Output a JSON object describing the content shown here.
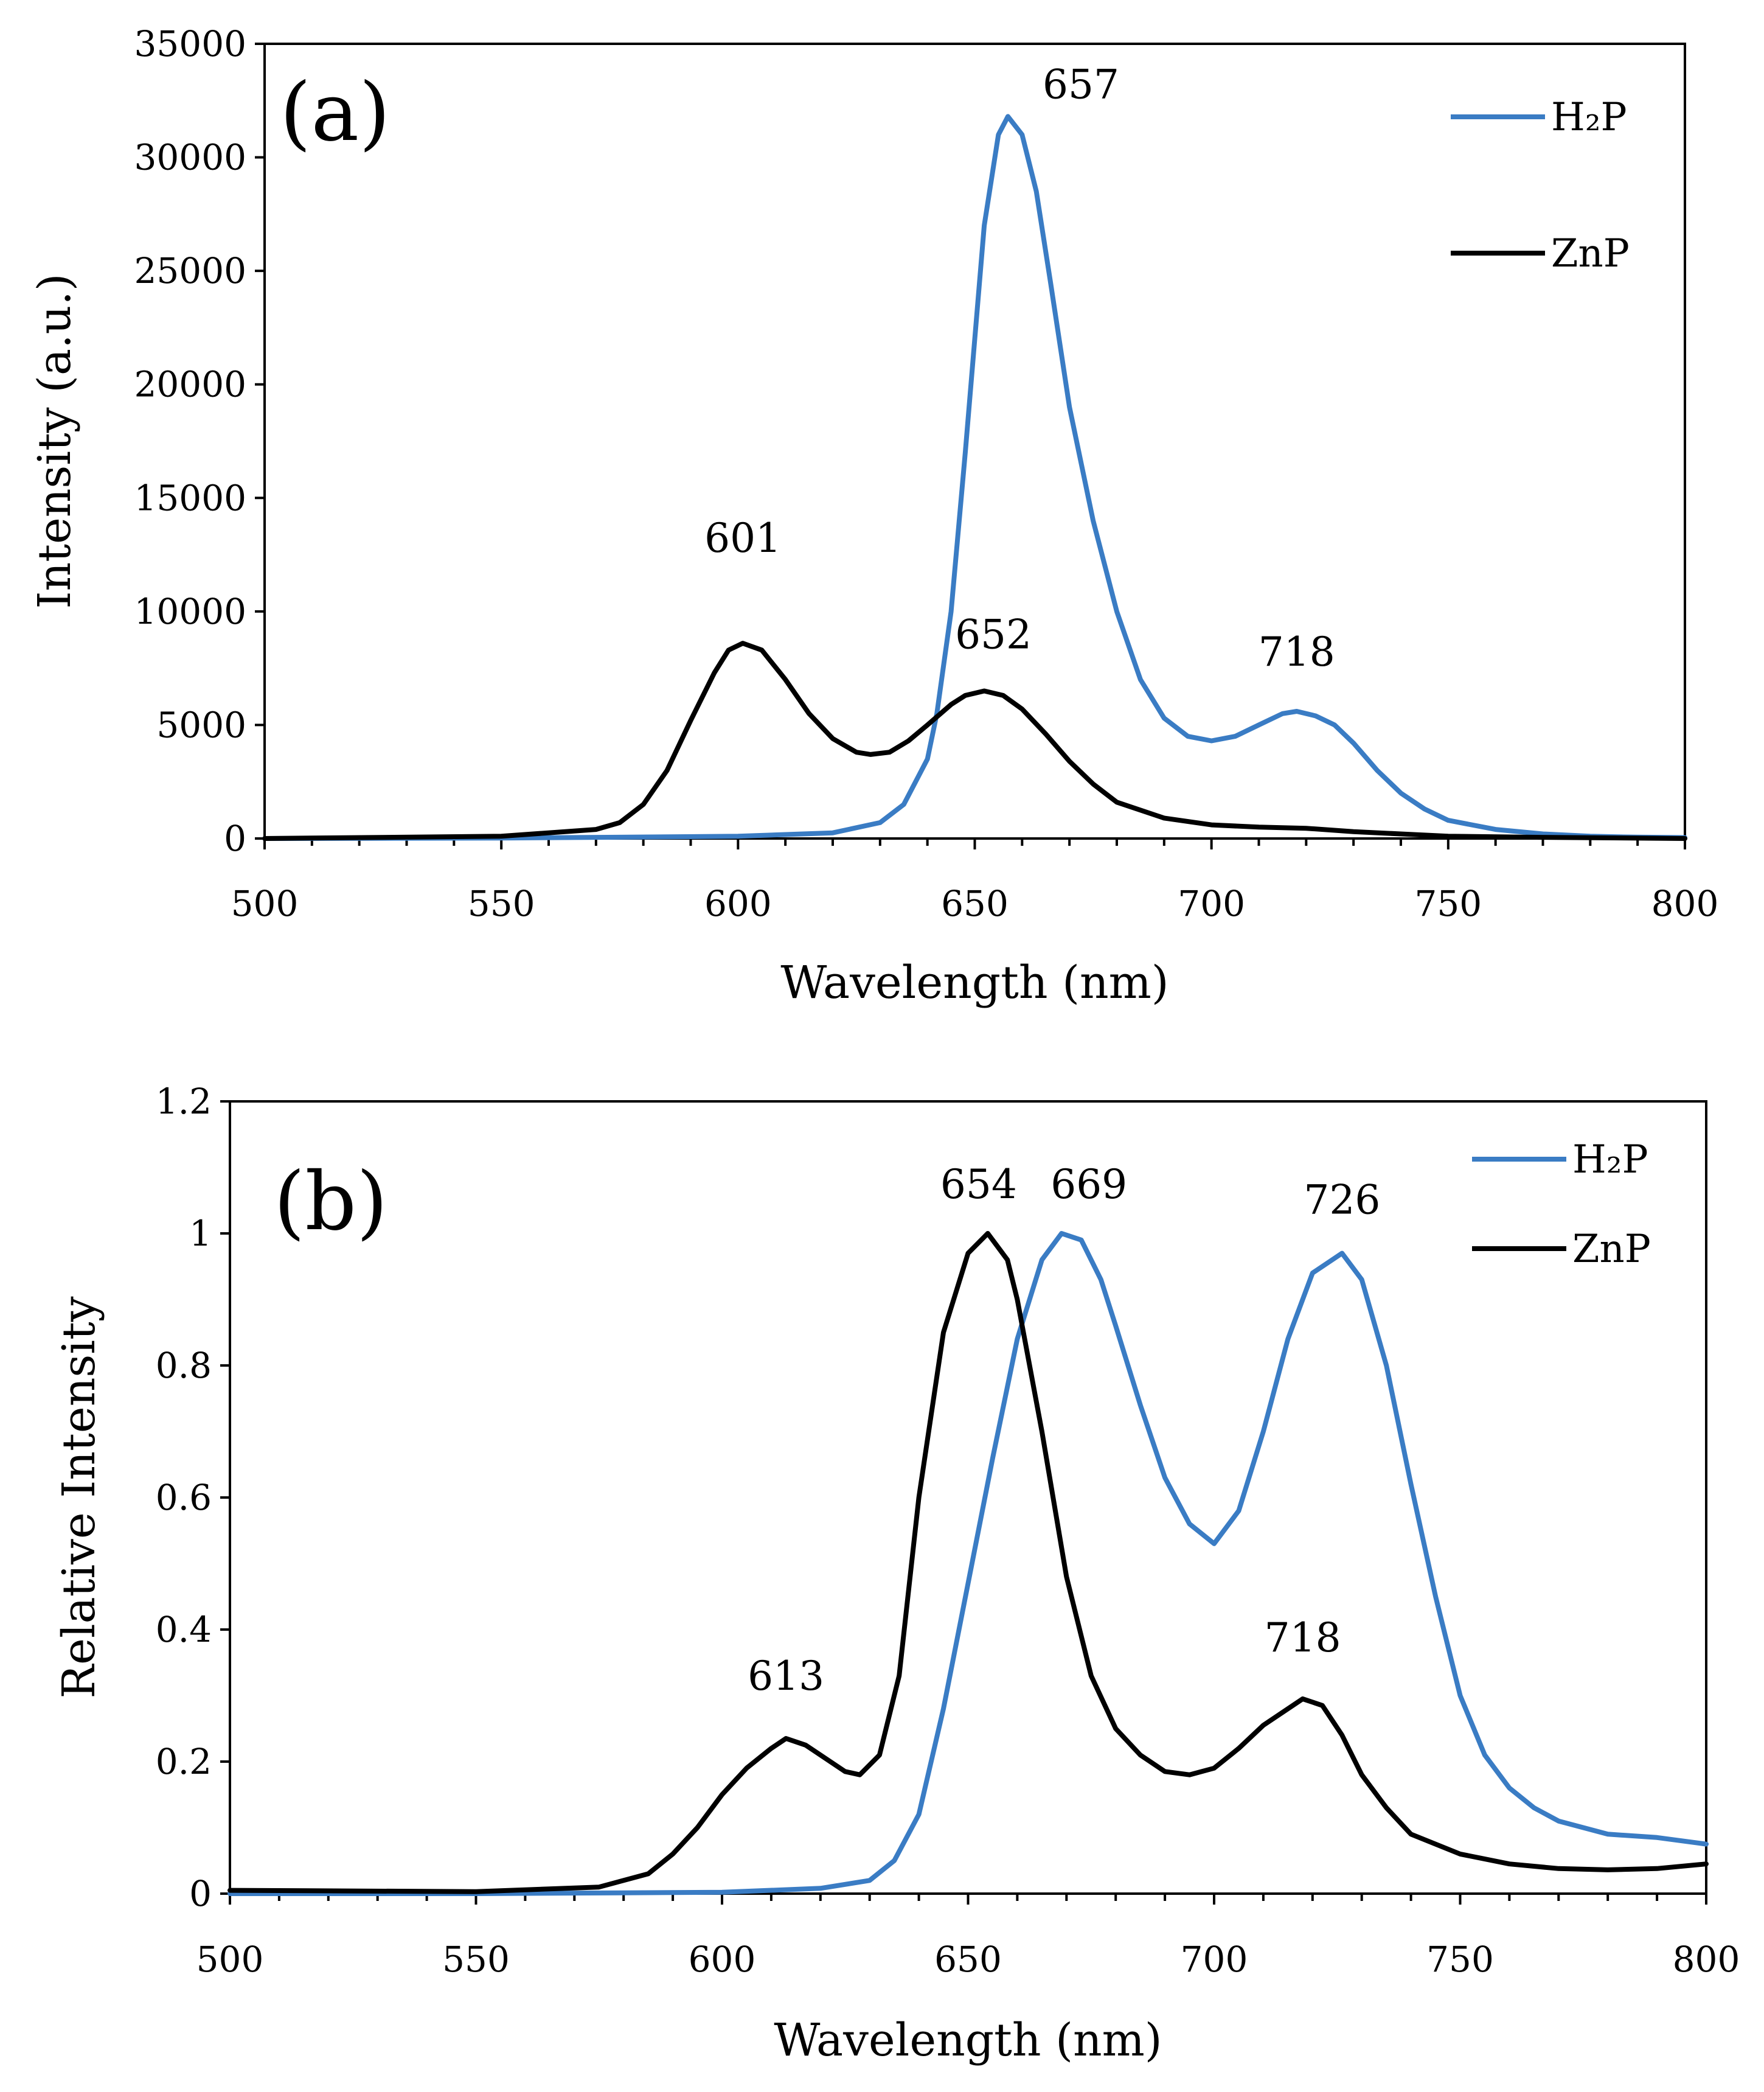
{
  "chart_data": [
    {
      "id": "a",
      "type": "line",
      "panel_label": "(a)",
      "xlabel": "Wavelength (nm)",
      "ylabel": "Intensity (a.u.)",
      "xlim": [
        500,
        800
      ],
      "ylim": [
        0,
        35000
      ],
      "x_ticks": [
        "500",
        "550",
        "600",
        "650",
        "700",
        "750",
        "800"
      ],
      "y_ticks": [
        "0",
        "5000",
        "10000",
        "15000",
        "20000",
        "25000",
        "30000",
        "35000"
      ],
      "legend_position": "top-right",
      "series": [
        {
          "name": "H₂P",
          "color": "#3a7cc4",
          "x": [
            500,
            550,
            600,
            620,
            630,
            635,
            640,
            642,
            645,
            648,
            650,
            652,
            655,
            657,
            660,
            663,
            666,
            670,
            675,
            680,
            685,
            690,
            695,
            700,
            705,
            710,
            715,
            718,
            722,
            726,
            730,
            735,
            740,
            745,
            750,
            760,
            770,
            780,
            790,
            800
          ],
          "y": [
            0,
            20,
            100,
            250,
            700,
            1500,
            3500,
            5500,
            10000,
            17000,
            22000,
            27000,
            31000,
            31800,
            31000,
            28500,
            24500,
            19000,
            14000,
            10000,
            7000,
            5300,
            4500,
            4300,
            4500,
            5000,
            5500,
            5600,
            5400,
            5000,
            4200,
            3000,
            2000,
            1300,
            800,
            400,
            200,
            100,
            60,
            40
          ]
        },
        {
          "name": "ZnP",
          "color": "#000000",
          "x": [
            500,
            550,
            570,
            575,
            580,
            585,
            590,
            595,
            598,
            601,
            605,
            610,
            615,
            620,
            625,
            628,
            632,
            636,
            640,
            645,
            648,
            652,
            656,
            660,
            665,
            670,
            675,
            680,
            690,
            700,
            710,
            720,
            730,
            740,
            750,
            770,
            800
          ],
          "y": [
            0,
            100,
            400,
            700,
            1500,
            3000,
            5200,
            7300,
            8300,
            8600,
            8300,
            7000,
            5500,
            4400,
            3800,
            3700,
            3800,
            4300,
            5000,
            5900,
            6300,
            6500,
            6300,
            5700,
            4600,
            3400,
            2400,
            1600,
            900,
            600,
            500,
            450,
            300,
            200,
            100,
            50,
            0
          ]
        }
      ],
      "annotations": [
        {
          "text": "657",
          "x": 657,
          "y": 31800
        },
        {
          "text": "601",
          "x": 601,
          "y": 8600
        },
        {
          "text": "652",
          "x": 652,
          "y": 6500
        },
        {
          "text": "718",
          "x": 718,
          "y": 5600
        }
      ]
    },
    {
      "id": "b",
      "type": "line",
      "panel_label": "(b)",
      "xlabel": "Wavelength (nm)",
      "ylabel": "Relative Intensity",
      "xlim": [
        500,
        800
      ],
      "ylim": [
        0,
        1.2
      ],
      "x_ticks": [
        "500",
        "550",
        "600",
        "650",
        "700",
        "750",
        "800"
      ],
      "y_ticks": [
        "0",
        "0.2",
        "0.4",
        "0.6",
        "0.8",
        "1",
        "1.2"
      ],
      "legend_position": "top-right",
      "series": [
        {
          "name": "H₂P",
          "color": "#3a7cc4",
          "x": [
            500,
            550,
            600,
            620,
            630,
            635,
            640,
            645,
            650,
            655,
            660,
            665,
            669,
            673,
            677,
            680,
            685,
            690,
            695,
            700,
            705,
            710,
            715,
            720,
            726,
            730,
            735,
            740,
            745,
            750,
            755,
            760,
            765,
            770,
            780,
            790,
            800
          ],
          "y": [
            0,
            0,
            0.002,
            0.008,
            0.02,
            0.05,
            0.12,
            0.28,
            0.47,
            0.66,
            0.84,
            0.96,
            1.0,
            0.99,
            0.93,
            0.86,
            0.74,
            0.63,
            0.56,
            0.53,
            0.58,
            0.7,
            0.84,
            0.94,
            0.97,
            0.93,
            0.8,
            0.62,
            0.45,
            0.3,
            0.21,
            0.16,
            0.13,
            0.11,
            0.09,
            0.085,
            0.075
          ]
        },
        {
          "name": "ZnP",
          "color": "#000000",
          "x": [
            500,
            550,
            575,
            585,
            590,
            595,
            600,
            605,
            610,
            613,
            617,
            620,
            625,
            628,
            632,
            636,
            640,
            645,
            650,
            654,
            658,
            660,
            665,
            670,
            675,
            680,
            685,
            690,
            695,
            700,
            705,
            710,
            718,
            722,
            726,
            730,
            735,
            740,
            750,
            760,
            770,
            780,
            790,
            800
          ],
          "y": [
            0.005,
            0.003,
            0.01,
            0.03,
            0.06,
            0.1,
            0.15,
            0.19,
            0.22,
            0.235,
            0.225,
            0.21,
            0.185,
            0.18,
            0.21,
            0.33,
            0.6,
            0.85,
            0.97,
            1.0,
            0.96,
            0.9,
            0.7,
            0.48,
            0.33,
            0.25,
            0.21,
            0.185,
            0.18,
            0.19,
            0.22,
            0.255,
            0.295,
            0.285,
            0.24,
            0.18,
            0.13,
            0.09,
            0.06,
            0.045,
            0.038,
            0.036,
            0.038,
            0.045
          ]
        }
      ],
      "annotations": [
        {
          "text": "654",
          "x": 654,
          "y": 1.0
        },
        {
          "text": "669",
          "x": 669,
          "y": 1.0
        },
        {
          "text": "726",
          "x": 726,
          "y": 0.97
        },
        {
          "text": "613",
          "x": 613,
          "y": 0.235
        },
        {
          "text": "718",
          "x": 718,
          "y": 0.295
        }
      ]
    }
  ]
}
